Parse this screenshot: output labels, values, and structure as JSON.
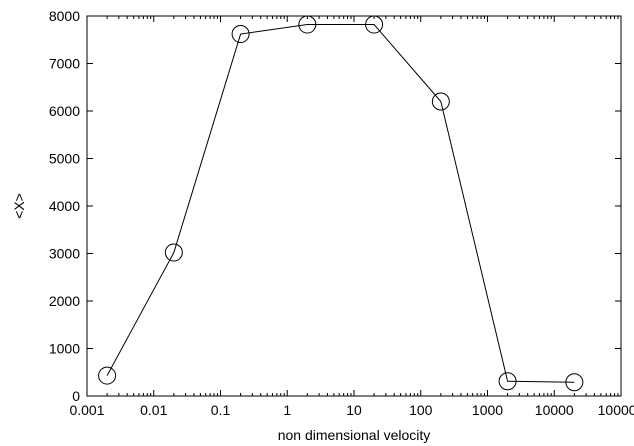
{
  "chart_data": {
    "type": "scatter",
    "title": "",
    "xlabel": "non dimensional velocity",
    "ylabel": "<X>",
    "xscale": "log",
    "xlim": [
      0.001,
      100000
    ],
    "ylim": [
      0,
      8000
    ],
    "grid": false,
    "legend": "none",
    "line_color": "#000000",
    "marker": "open-circle",
    "x_ticks": [
      {
        "value": 0.001,
        "label": "0.001"
      },
      {
        "value": 0.01,
        "label": "0.01"
      },
      {
        "value": 0.1,
        "label": "0.1"
      },
      {
        "value": 1,
        "label": "1"
      },
      {
        "value": 10,
        "label": "10"
      },
      {
        "value": 100,
        "label": "100"
      },
      {
        "value": 1000,
        "label": "1000"
      },
      {
        "value": 10000,
        "label": "10000"
      },
      {
        "value": 100000,
        "label": "100000"
      }
    ],
    "y_ticks": [
      {
        "value": 0,
        "label": "0"
      },
      {
        "value": 1000,
        "label": "1000"
      },
      {
        "value": 2000,
        "label": "2000"
      },
      {
        "value": 3000,
        "label": "3000"
      },
      {
        "value": 4000,
        "label": "4000"
      },
      {
        "value": 5000,
        "label": "5000"
      },
      {
        "value": 6000,
        "label": "6000"
      },
      {
        "value": 7000,
        "label": "7000"
      },
      {
        "value": 8000,
        "label": "8000"
      }
    ],
    "series": [
      {
        "x": [
          0.002,
          0.02,
          0.2,
          2,
          20,
          200,
          2000,
          20000
        ],
        "y": [
          430,
          3020,
          7620,
          7820,
          7820,
          6200,
          310,
          290
        ]
      }
    ]
  }
}
